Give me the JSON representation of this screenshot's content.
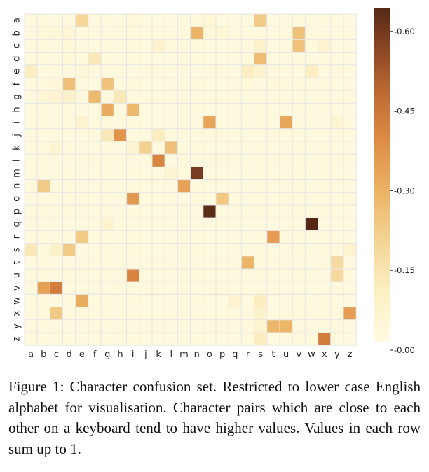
{
  "caption": "Figure 1: Character confusion set. Restricted to lower case English alphabet for visualisation. Character pairs which are close to each other on a keyboard tend to have higher values. Values in each row sum up to 1.",
  "chart_data": {
    "type": "heatmap",
    "title": "",
    "xlabel": "",
    "ylabel": "",
    "x_categories": [
      "a",
      "b",
      "c",
      "d",
      "e",
      "f",
      "g",
      "h",
      "i",
      "j",
      "k",
      "l",
      "m",
      "n",
      "o",
      "p",
      "q",
      "r",
      "s",
      "t",
      "u",
      "v",
      "w",
      "x",
      "y",
      "z"
    ],
    "y_categories": [
      "a",
      "b",
      "c",
      "d",
      "e",
      "f",
      "g",
      "h",
      "i",
      "j",
      "k",
      "l",
      "m",
      "n",
      "o",
      "p",
      "q",
      "r",
      "s",
      "t",
      "u",
      "v",
      "w",
      "x",
      "y",
      "z"
    ],
    "value_range": [
      0,
      0.63
    ],
    "colormap": "YlOrBr",
    "colorbar_ticks": [
      "0.00",
      "0.15",
      "0.30",
      "0.45",
      "0.60"
    ],
    "values": [
      [
        0.02,
        0.02,
        0.02,
        0.02,
        0.18,
        0.02,
        0.02,
        0.02,
        0.03,
        0.02,
        0.02,
        0.02,
        0.02,
        0.02,
        0.04,
        0.02,
        0.02,
        0.02,
        0.22,
        0.02,
        0.02,
        0.02,
        0.02,
        0.02,
        0.02,
        0.02
      ],
      [
        0.02,
        0.03,
        0.03,
        0.04,
        0.02,
        0.02,
        0.02,
        0.02,
        0.02,
        0.02,
        0.02,
        0.02,
        0.02,
        0.28,
        0.03,
        0.04,
        0.02,
        0.02,
        0.02,
        0.02,
        0.02,
        0.25,
        0.02,
        0.02,
        0.02,
        0.02
      ],
      [
        0.02,
        0.02,
        0.02,
        0.03,
        0.02,
        0.02,
        0.02,
        0.02,
        0.02,
        0.02,
        0.06,
        0.02,
        0.02,
        0.02,
        0.02,
        0.02,
        0.02,
        0.02,
        0.08,
        0.02,
        0.02,
        0.24,
        0.02,
        0.07,
        0.02,
        0.02
      ],
      [
        0.02,
        0.02,
        0.02,
        0.03,
        0.02,
        0.12,
        0.02,
        0.02,
        0.02,
        0.02,
        0.02,
        0.02,
        0.02,
        0.02,
        0.02,
        0.02,
        0.02,
        0.02,
        0.26,
        0.02,
        0.02,
        0.02,
        0.02,
        0.02,
        0.02,
        0.02
      ],
      [
        0.1,
        0.02,
        0.02,
        0.02,
        0.03,
        0.02,
        0.02,
        0.02,
        0.02,
        0.02,
        0.02,
        0.02,
        0.02,
        0.02,
        0.02,
        0.02,
        0.02,
        0.1,
        0.06,
        0.02,
        0.02,
        0.02,
        0.1,
        0.02,
        0.02,
        0.02
      ],
      [
        0.02,
        0.02,
        0.03,
        0.25,
        0.02,
        0.02,
        0.24,
        0.02,
        0.02,
        0.02,
        0.02,
        0.02,
        0.02,
        0.02,
        0.02,
        0.02,
        0.02,
        0.03,
        0.02,
        0.03,
        0.02,
        0.02,
        0.02,
        0.02,
        0.02,
        0.02
      ],
      [
        0.02,
        0.04,
        0.05,
        0.08,
        0.02,
        0.27,
        0.02,
        0.12,
        0.02,
        0.02,
        0.02,
        0.02,
        0.02,
        0.02,
        0.02,
        0.02,
        0.02,
        0.02,
        0.02,
        0.02,
        0.02,
        0.02,
        0.02,
        0.02,
        0.02,
        0.02
      ],
      [
        0.02,
        0.02,
        0.02,
        0.02,
        0.02,
        0.02,
        0.3,
        0.02,
        0.27,
        0.02,
        0.02,
        0.02,
        0.02,
        0.02,
        0.02,
        0.02,
        0.02,
        0.02,
        0.02,
        0.02,
        0.02,
        0.02,
        0.02,
        0.02,
        0.02,
        0.02
      ],
      [
        0.02,
        0.02,
        0.02,
        0.02,
        0.06,
        0.02,
        0.02,
        0.02,
        0.02,
        0.02,
        0.02,
        0.02,
        0.02,
        0.02,
        0.32,
        0.02,
        0.02,
        0.02,
        0.02,
        0.02,
        0.32,
        0.02,
        0.02,
        0.02,
        0.05,
        0.02
      ],
      [
        0.02,
        0.02,
        0.02,
        0.02,
        0.02,
        0.02,
        0.12,
        0.36,
        0.02,
        0.02,
        0.1,
        0.02,
        0.02,
        0.02,
        0.02,
        0.02,
        0.02,
        0.02,
        0.02,
        0.02,
        0.02,
        0.02,
        0.02,
        0.02,
        0.02,
        0.02
      ],
      [
        0.02,
        0.02,
        0.05,
        0.02,
        0.02,
        0.02,
        0.02,
        0.02,
        0.05,
        0.2,
        0.02,
        0.25,
        0.02,
        0.02,
        0.02,
        0.02,
        0.02,
        0.02,
        0.02,
        0.02,
        0.02,
        0.02,
        0.02,
        0.02,
        0.02,
        0.02
      ],
      [
        0.02,
        0.02,
        0.02,
        0.02,
        0.02,
        0.02,
        0.02,
        0.02,
        0.02,
        0.02,
        0.4,
        0.02,
        0.02,
        0.02,
        0.02,
        0.02,
        0.02,
        0.02,
        0.02,
        0.02,
        0.02,
        0.02,
        0.02,
        0.02,
        0.02,
        0.02
      ],
      [
        0.02,
        0.02,
        0.02,
        0.02,
        0.02,
        0.02,
        0.02,
        0.02,
        0.02,
        0.02,
        0.02,
        0.05,
        0.02,
        0.58,
        0.02,
        0.02,
        0.02,
        0.02,
        0.02,
        0.02,
        0.02,
        0.02,
        0.02,
        0.02,
        0.02,
        0.02
      ],
      [
        0.02,
        0.22,
        0.02,
        0.02,
        0.02,
        0.02,
        0.02,
        0.02,
        0.02,
        0.02,
        0.02,
        0.02,
        0.33,
        0.02,
        0.02,
        0.02,
        0.02,
        0.02,
        0.02,
        0.02,
        0.02,
        0.02,
        0.02,
        0.02,
        0.02,
        0.02
      ],
      [
        0.02,
        0.02,
        0.02,
        0.02,
        0.02,
        0.02,
        0.02,
        0.02,
        0.35,
        0.02,
        0.02,
        0.02,
        0.02,
        0.02,
        0.02,
        0.23,
        0.02,
        0.02,
        0.02,
        0.02,
        0.02,
        0.02,
        0.02,
        0.02,
        0.02,
        0.02
      ],
      [
        0.02,
        0.02,
        0.02,
        0.02,
        0.02,
        0.02,
        0.02,
        0.02,
        0.02,
        0.02,
        0.02,
        0.02,
        0.02,
        0.02,
        0.62,
        0.02,
        0.02,
        0.02,
        0.02,
        0.02,
        0.02,
        0.02,
        0.02,
        0.02,
        0.02,
        0.02
      ],
      [
        0.02,
        0.02,
        0.02,
        0.02,
        0.02,
        0.02,
        0.06,
        0.02,
        0.02,
        0.02,
        0.02,
        0.02,
        0.02,
        0.02,
        0.02,
        0.02,
        0.02,
        0.02,
        0.02,
        0.02,
        0.02,
        0.02,
        0.63,
        0.02,
        0.02,
        0.02
      ],
      [
        0.02,
        0.02,
        0.02,
        0.02,
        0.22,
        0.02,
        0.02,
        0.02,
        0.02,
        0.02,
        0.02,
        0.02,
        0.02,
        0.02,
        0.02,
        0.02,
        0.02,
        0.02,
        0.02,
        0.34,
        0.02,
        0.02,
        0.02,
        0.02,
        0.02,
        0.02
      ],
      [
        0.12,
        0.02,
        0.08,
        0.22,
        0.02,
        0.02,
        0.02,
        0.02,
        0.02,
        0.02,
        0.02,
        0.02,
        0.02,
        0.02,
        0.02,
        0.02,
        0.02,
        0.02,
        0.02,
        0.02,
        0.02,
        0.02,
        0.02,
        0.02,
        0.02,
        0.06
      ],
      [
        0.02,
        0.02,
        0.02,
        0.02,
        0.02,
        0.02,
        0.02,
        0.02,
        0.02,
        0.02,
        0.02,
        0.02,
        0.02,
        0.02,
        0.02,
        0.02,
        0.02,
        0.28,
        0.02,
        0.02,
        0.02,
        0.02,
        0.02,
        0.02,
        0.17,
        0.02
      ],
      [
        0.02,
        0.02,
        0.02,
        0.02,
        0.02,
        0.02,
        0.02,
        0.02,
        0.4,
        0.02,
        0.02,
        0.02,
        0.02,
        0.02,
        0.02,
        0.02,
        0.02,
        0.02,
        0.02,
        0.02,
        0.02,
        0.02,
        0.02,
        0.02,
        0.17,
        0.02
      ],
      [
        0.02,
        0.33,
        0.42,
        0.02,
        0.02,
        0.02,
        0.02,
        0.02,
        0.02,
        0.02,
        0.02,
        0.02,
        0.02,
        0.02,
        0.02,
        0.02,
        0.02,
        0.02,
        0.02,
        0.02,
        0.02,
        0.02,
        0.02,
        0.02,
        0.02,
        0.02
      ],
      [
        0.02,
        0.02,
        0.02,
        0.02,
        0.3,
        0.02,
        0.02,
        0.02,
        0.02,
        0.02,
        0.02,
        0.02,
        0.02,
        0.02,
        0.02,
        0.02,
        0.07,
        0.02,
        0.1,
        0.02,
        0.02,
        0.02,
        0.02,
        0.02,
        0.02,
        0.02
      ],
      [
        0.02,
        0.02,
        0.22,
        0.02,
        0.02,
        0.02,
        0.02,
        0.02,
        0.02,
        0.02,
        0.02,
        0.02,
        0.02,
        0.02,
        0.02,
        0.02,
        0.02,
        0.02,
        0.08,
        0.02,
        0.02,
        0.02,
        0.02,
        0.02,
        0.02,
        0.34
      ],
      [
        0.02,
        0.02,
        0.02,
        0.02,
        0.02,
        0.02,
        0.02,
        0.02,
        0.02,
        0.02,
        0.02,
        0.02,
        0.02,
        0.02,
        0.02,
        0.02,
        0.02,
        0.02,
        0.06,
        0.28,
        0.28,
        0.02,
        0.02,
        0.02,
        0.02,
        0.02
      ],
      [
        0.02,
        0.02,
        0.02,
        0.02,
        0.02,
        0.02,
        0.02,
        0.02,
        0.02,
        0.02,
        0.02,
        0.02,
        0.02,
        0.02,
        0.02,
        0.02,
        0.02,
        0.02,
        0.1,
        0.02,
        0.02,
        0.02,
        0.02,
        0.42,
        0.02,
        0.02
      ]
    ]
  }
}
